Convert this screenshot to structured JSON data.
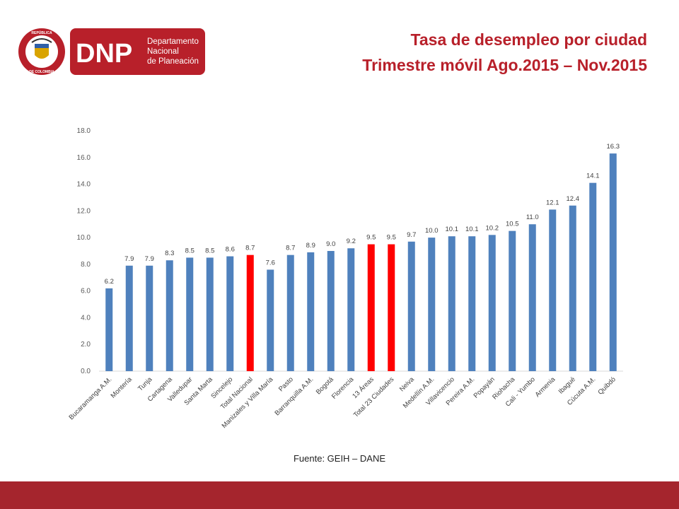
{
  "logo": {
    "brand": "DNP",
    "line1": "Departamento",
    "line2": "Nacional",
    "line3": "de Planeación",
    "seal_top": "REPÚBLICA",
    "seal_bottom": "DE COLOMBIA"
  },
  "header": {
    "title_line1": "Tasa de desempleo por ciudad",
    "title_line2": "Trimestre móvil Ago.2015 – Nov.2015"
  },
  "source": "Fuente: GEIH – DANE",
  "colors": {
    "bar": "#4f81bd",
    "highlight": "#ff0000",
    "title": "#b8202a",
    "footer": "#a5252d"
  },
  "chart_data": {
    "type": "bar",
    "title": "",
    "xlabel": "",
    "ylabel": "",
    "ylim": [
      0,
      18
    ],
    "yticks": [
      "0.0",
      "2.0",
      "4.0",
      "6.0",
      "8.0",
      "10.0",
      "12.0",
      "14.0",
      "16.0",
      "18.0"
    ],
    "grid": false,
    "legend": "none",
    "categories": [
      "Bucaramanga A.M.",
      "Montería",
      "Tunja",
      "Cartagena",
      "Valledupar",
      "Santa Marta",
      "Sincelejo",
      "Total Nacional",
      "Manizales y Villa María",
      "Pasto",
      "Barranquilla A.M.",
      "Bogotá",
      "Florencia",
      "13 Áreas",
      "Total 23 Ciudades",
      "Neiva",
      "Medellín A.M.",
      "Villavicencio",
      "Pereira A.M.",
      "Popayán",
      "Riohacha",
      "Cali - Yumbo",
      "Armenia",
      "Ibagué",
      "Cúcuta A.M.",
      "Quibdó"
    ],
    "values": [
      6.2,
      7.9,
      7.9,
      8.3,
      8.5,
      8.5,
      8.6,
      8.7,
      7.6,
      8.7,
      8.9,
      9.0,
      9.2,
      9.5,
      9.5,
      9.7,
      10.0,
      10.1,
      10.1,
      10.2,
      10.5,
      11.0,
      12.1,
      12.4,
      14.1,
      16.3
    ],
    "value_labels": [
      "6.2",
      "7.9",
      "7.9",
      "8.3",
      "8.5",
      "8.5",
      "8.6",
      "8.7",
      "7.6",
      "8.7",
      "8.9",
      "9.0",
      "9.2",
      "9.5",
      "9.5",
      "9.7",
      "10.0",
      "10.1",
      "10.1",
      "10.2",
      "10.5",
      "11.0",
      "12.1",
      "12.4",
      "14.1",
      "16.3"
    ],
    "highlighted": [
      "Total Nacional",
      "13 Áreas",
      "Total 23 Ciudades"
    ]
  }
}
